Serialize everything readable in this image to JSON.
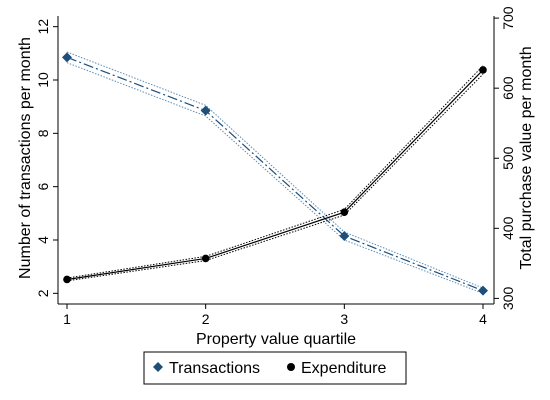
{
  "chart_data": {
    "type": "line",
    "x": [
      1,
      2,
      3,
      4
    ],
    "xlabel": "Property value quartile",
    "x_ticks": [
      "1",
      "2",
      "3",
      "4"
    ],
    "y_left": {
      "label": "Number of transactions per month",
      "range": [
        1.6,
        12.4
      ],
      "ticks": [
        "2",
        "4",
        "6",
        "8",
        "10",
        "12"
      ]
    },
    "y_right": {
      "label": "Total purchase value per month",
      "range": [
        292,
        703
      ],
      "ticks": [
        "300",
        "400",
        "500",
        "600",
        "700"
      ]
    },
    "series": [
      {
        "name": "Transactions",
        "axis": "left",
        "marker": "diamond",
        "color": "#1f4e79",
        "line_style": "dashed",
        "ci_color": "#5b8db8",
        "values": [
          10.85,
          8.85,
          4.15,
          2.1
        ],
        "ci_upper": [
          11.05,
          9.05,
          4.3,
          2.2
        ],
        "ci_lower": [
          10.65,
          8.65,
          4.0,
          2.0
        ]
      },
      {
        "name": "Expenditure",
        "axis": "right",
        "marker": "circle",
        "color": "#000000",
        "line_style": "solid",
        "ci_color": "#000000",
        "values": [
          327,
          357,
          423,
          626
        ],
        "ci_upper": [
          329,
          360,
          427,
          632
        ],
        "ci_lower": [
          325,
          354,
          419,
          620
        ]
      }
    ],
    "legend": {
      "position": "bottom",
      "entries": [
        "Transactions",
        "Expenditure"
      ]
    },
    "grid": false
  }
}
